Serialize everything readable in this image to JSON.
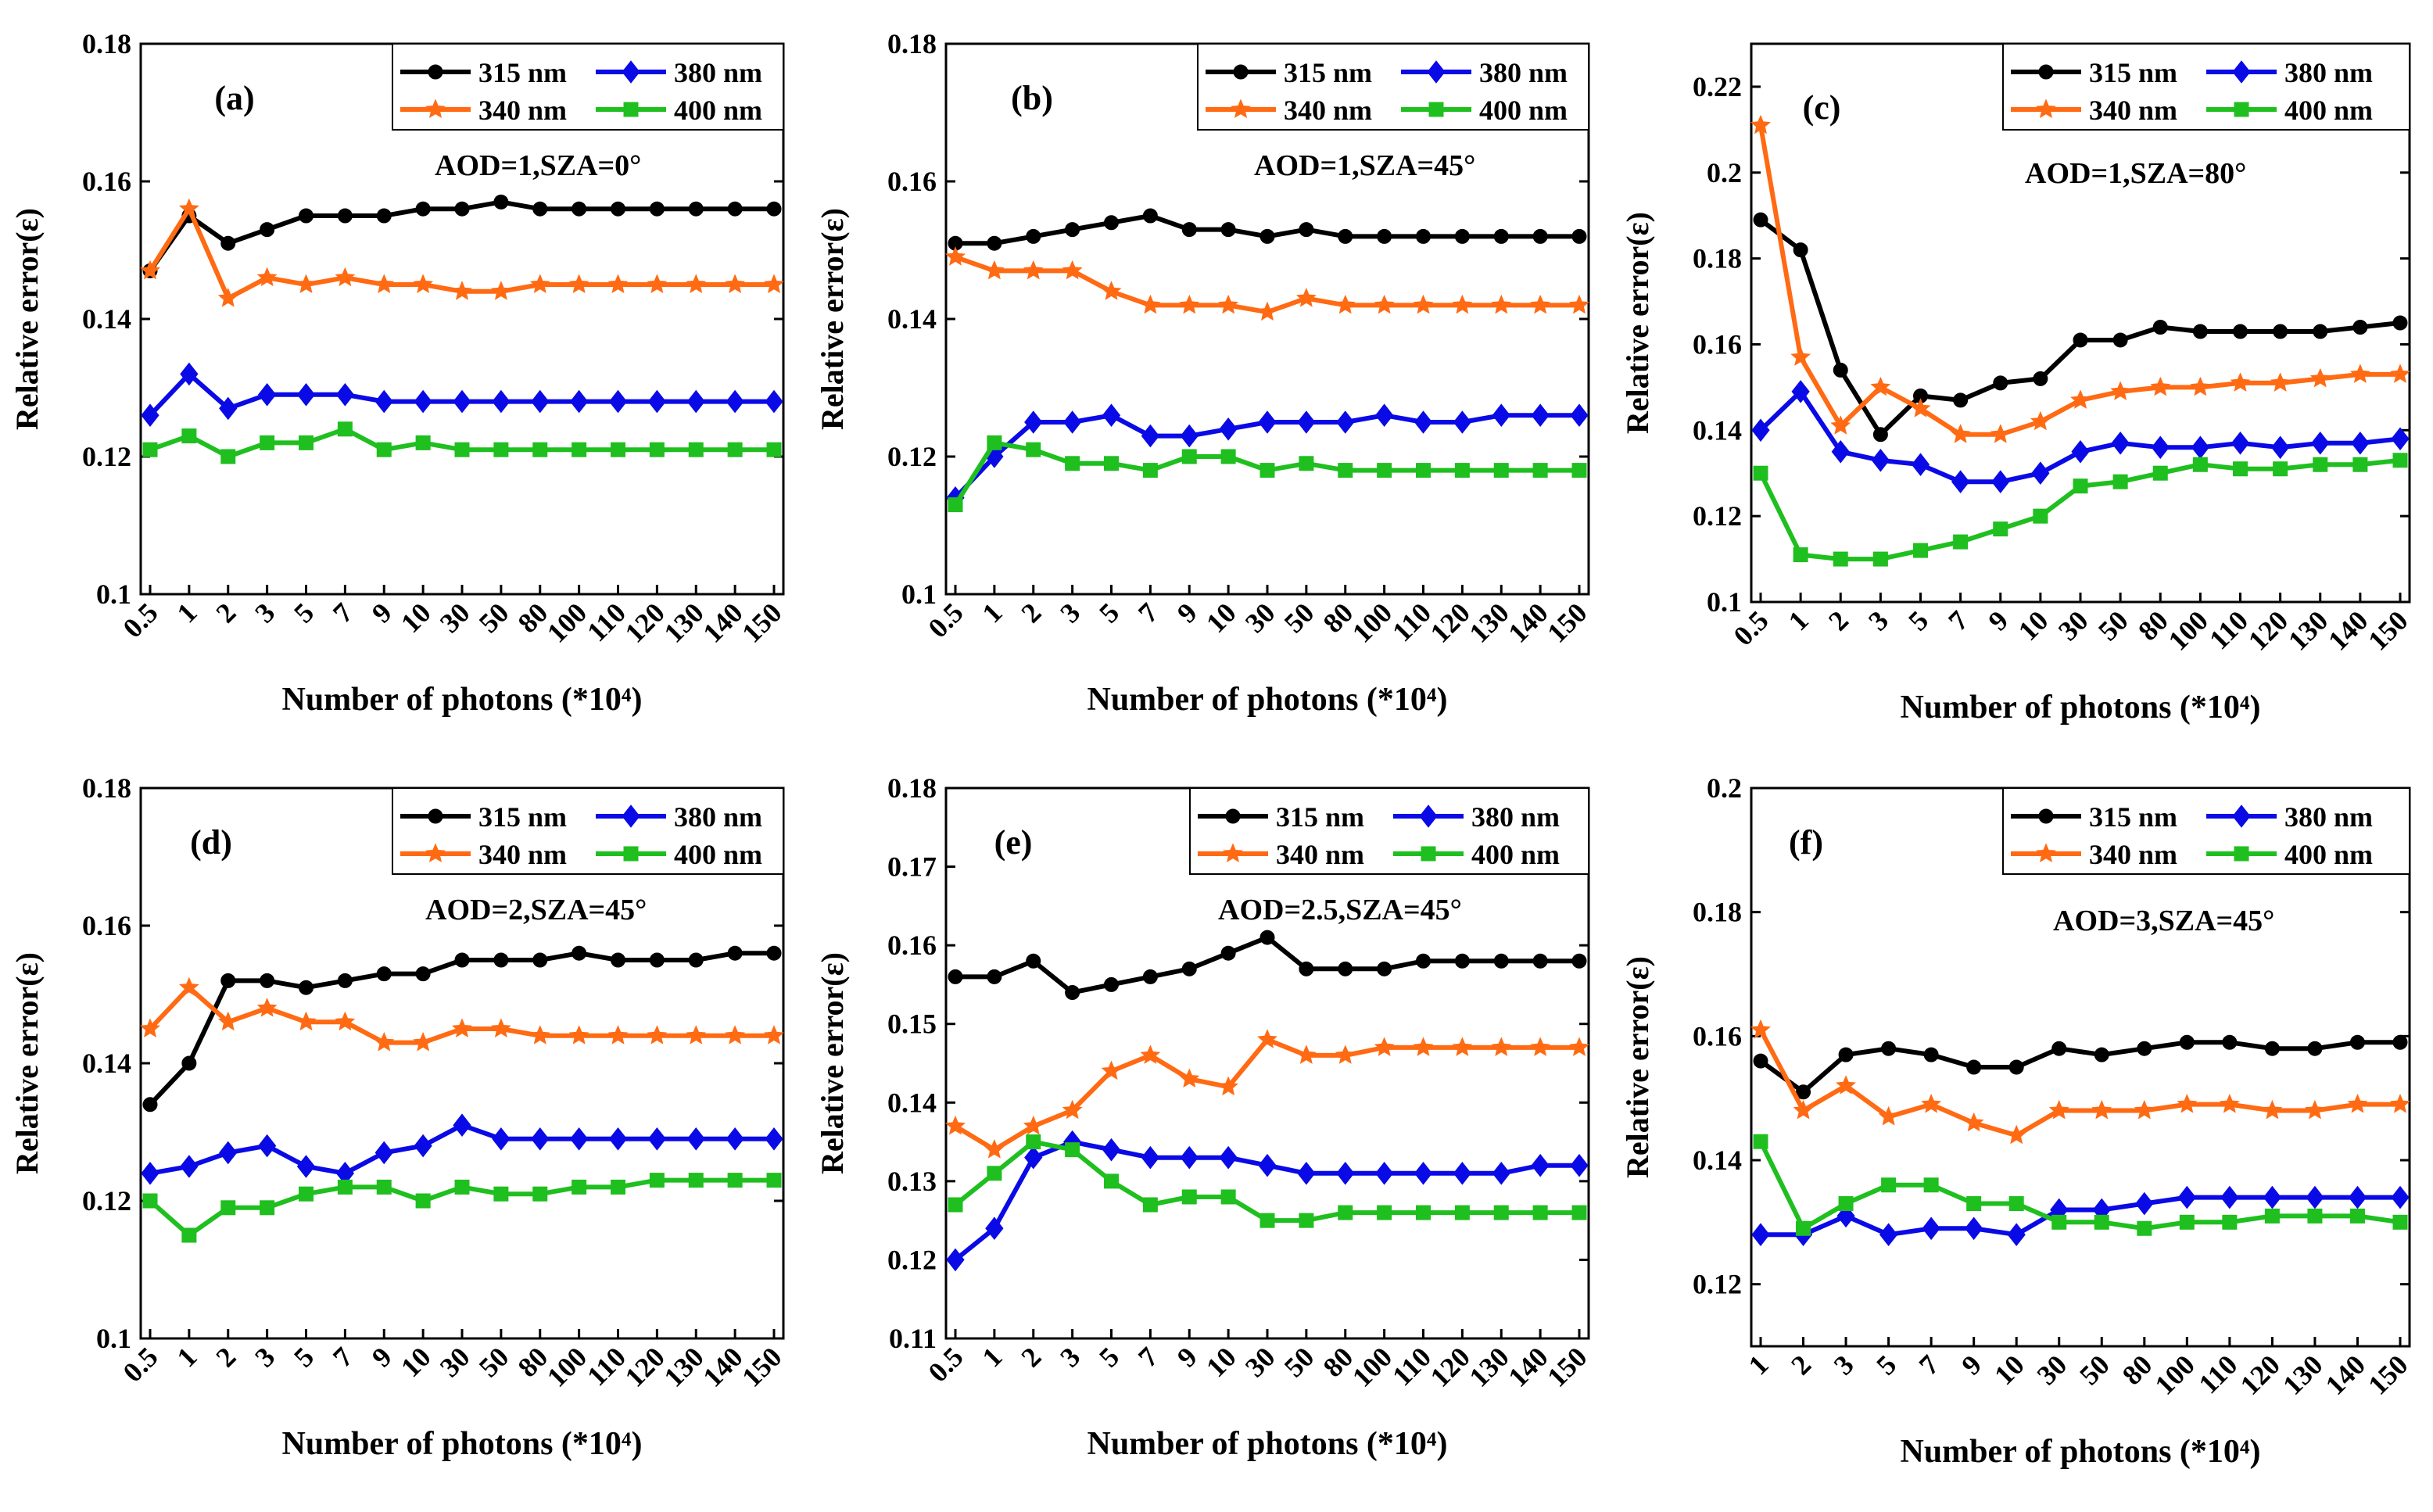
{
  "chart_data": [
    {
      "type": "line",
      "panel_label": "(a)",
      "annotation": "AOD=1,SZA=0°",
      "categories": [
        "0.5",
        "1",
        "2",
        "3",
        "5",
        "7",
        "9",
        "10",
        "30",
        "50",
        "80",
        "100",
        "110",
        "120",
        "130",
        "140",
        "150"
      ],
      "ylim": [
        0.1,
        0.18
      ],
      "yticks": [
        "0.1",
        "0.12",
        "0.14",
        "0.16",
        "0.18"
      ],
      "ylabel": "Relative error(ε)",
      "xlabel": "Number of photons (*10⁴)",
      "series": [
        {
          "name": "315 nm",
          "color": "#000000",
          "marker": "circle",
          "values": [
            0.147,
            0.155,
            0.151,
            0.153,
            0.155,
            0.155,
            0.155,
            0.156,
            0.156,
            0.157,
            0.156,
            0.156,
            0.156,
            0.156,
            0.156,
            0.156,
            0.156
          ]
        },
        {
          "name": "340 nm",
          "color": "#FF6A13",
          "marker": "star",
          "values": [
            0.147,
            0.156,
            0.143,
            0.146,
            0.145,
            0.146,
            0.145,
            0.145,
            0.144,
            0.144,
            0.145,
            0.145,
            0.145,
            0.145,
            0.145,
            0.145,
            0.145
          ]
        },
        {
          "name": "380 nm",
          "color": "#0A0AE6",
          "marker": "diamond",
          "values": [
            0.126,
            0.132,
            0.127,
            0.129,
            0.129,
            0.129,
            0.128,
            0.128,
            0.128,
            0.128,
            0.128,
            0.128,
            0.128,
            0.128,
            0.128,
            0.128,
            0.128
          ]
        },
        {
          "name": "400 nm",
          "color": "#1FBF1F",
          "marker": "square",
          "values": [
            0.121,
            0.123,
            0.12,
            0.122,
            0.122,
            0.124,
            0.121,
            0.122,
            0.121,
            0.121,
            0.121,
            0.121,
            0.121,
            0.121,
            0.121,
            0.121,
            0.121
          ]
        }
      ]
    },
    {
      "type": "line",
      "panel_label": "(b)",
      "annotation": "AOD=1,SZA=45°",
      "categories": [
        "0.5",
        "1",
        "2",
        "3",
        "5",
        "7",
        "9",
        "10",
        "30",
        "50",
        "80",
        "100",
        "110",
        "120",
        "130",
        "140",
        "150"
      ],
      "ylim": [
        0.1,
        0.18
      ],
      "yticks": [
        "0.1",
        "0.12",
        "0.14",
        "0.16",
        "0.18"
      ],
      "ylabel": "Relative error(ε)",
      "xlabel": "Number of photons (*10⁴)",
      "series": [
        {
          "name": "315 nm",
          "color": "#000000",
          "marker": "circle",
          "values": [
            0.151,
            0.151,
            0.152,
            0.153,
            0.154,
            0.155,
            0.153,
            0.153,
            0.152,
            0.153,
            0.152,
            0.152,
            0.152,
            0.152,
            0.152,
            0.152,
            0.152
          ]
        },
        {
          "name": "340 nm",
          "color": "#FF6A13",
          "marker": "star",
          "values": [
            0.149,
            0.147,
            0.147,
            0.147,
            0.144,
            0.142,
            0.142,
            0.142,
            0.141,
            0.143,
            0.142,
            0.142,
            0.142,
            0.142,
            0.142,
            0.142,
            0.142
          ]
        },
        {
          "name": "380 nm",
          "color": "#0A0AE6",
          "marker": "diamond",
          "values": [
            0.114,
            0.12,
            0.125,
            0.125,
            0.126,
            0.123,
            0.123,
            0.124,
            0.125,
            0.125,
            0.125,
            0.126,
            0.125,
            0.125,
            0.126,
            0.126,
            0.126
          ]
        },
        {
          "name": "400 nm",
          "color": "#1FBF1F",
          "marker": "square",
          "values": [
            0.113,
            0.122,
            0.121,
            0.119,
            0.119,
            0.118,
            0.12,
            0.12,
            0.118,
            0.119,
            0.118,
            0.118,
            0.118,
            0.118,
            0.118,
            0.118,
            0.118
          ]
        }
      ]
    },
    {
      "type": "line",
      "panel_label": "(c)",
      "annotation": "AOD=1,SZA=80°",
      "categories": [
        "0.5",
        "1",
        "2",
        "3",
        "5",
        "7",
        "9",
        "10",
        "30",
        "50",
        "80",
        "100",
        "110",
        "120",
        "130",
        "140",
        "150"
      ],
      "ylim": [
        0.1,
        0.23
      ],
      "yticks": [
        "0.1",
        "0.12",
        "0.14",
        "0.16",
        "0.18",
        "0.2",
        "0.22"
      ],
      "ylabel": "Relative error(ε)",
      "xlabel": "Number of photons (*10⁴)",
      "series": [
        {
          "name": "315 nm",
          "color": "#000000",
          "marker": "circle",
          "values": [
            0.189,
            0.182,
            0.154,
            0.139,
            0.148,
            0.147,
            0.151,
            0.152,
            0.161,
            0.161,
            0.164,
            0.163,
            0.163,
            0.163,
            0.163,
            0.164,
            0.165
          ]
        },
        {
          "name": "340 nm",
          "color": "#FF6A13",
          "marker": "star",
          "values": [
            0.211,
            0.157,
            0.141,
            0.15,
            0.145,
            0.139,
            0.139,
            0.142,
            0.147,
            0.149,
            0.15,
            0.15,
            0.151,
            0.151,
            0.152,
            0.153,
            0.153
          ]
        },
        {
          "name": "380 nm",
          "color": "#0A0AE6",
          "marker": "diamond",
          "values": [
            0.14,
            0.149,
            0.135,
            0.133,
            0.132,
            0.128,
            0.128,
            0.13,
            0.135,
            0.137,
            0.136,
            0.136,
            0.137,
            0.136,
            0.137,
            0.137,
            0.138
          ]
        },
        {
          "name": "400 nm",
          "color": "#1FBF1F",
          "marker": "square",
          "values": [
            0.13,
            0.111,
            0.11,
            0.11,
            0.112,
            0.114,
            0.117,
            0.12,
            0.127,
            0.128,
            0.13,
            0.132,
            0.131,
            0.131,
            0.132,
            0.132,
            0.133
          ]
        }
      ]
    },
    {
      "type": "line",
      "panel_label": "(d)",
      "annotation": "AOD=2,SZA=45°",
      "categories": [
        "0.5",
        "1",
        "2",
        "3",
        "5",
        "7",
        "9",
        "10",
        "30",
        "50",
        "80",
        "100",
        "110",
        "120",
        "130",
        "140",
        "150"
      ],
      "ylim": [
        0.1,
        0.18
      ],
      "yticks": [
        "0.1",
        "0.12",
        "0.14",
        "0.16",
        "0.18"
      ],
      "ylabel": "Relative error(ε)",
      "xlabel": "Number of photons (*10⁴)",
      "series": [
        {
          "name": "315 nm",
          "color": "#000000",
          "marker": "circle",
          "values": [
            0.134,
            0.14,
            0.152,
            0.152,
            0.151,
            0.152,
            0.153,
            0.153,
            0.155,
            0.155,
            0.155,
            0.156,
            0.155,
            0.155,
            0.155,
            0.156,
            0.156
          ]
        },
        {
          "name": "340 nm",
          "color": "#FF6A13",
          "marker": "star",
          "values": [
            0.145,
            0.151,
            0.146,
            0.148,
            0.146,
            0.146,
            0.143,
            0.143,
            0.145,
            0.145,
            0.144,
            0.144,
            0.144,
            0.144,
            0.144,
            0.144,
            0.144
          ]
        },
        {
          "name": "380 nm",
          "color": "#0A0AE6",
          "marker": "diamond",
          "values": [
            0.124,
            0.125,
            0.127,
            0.128,
            0.125,
            0.124,
            0.127,
            0.128,
            0.131,
            0.129,
            0.129,
            0.129,
            0.129,
            0.129,
            0.129,
            0.129,
            0.129
          ]
        },
        {
          "name": "400 nm",
          "color": "#1FBF1F",
          "marker": "square",
          "values": [
            0.12,
            0.115,
            0.119,
            0.119,
            0.121,
            0.122,
            0.122,
            0.12,
            0.122,
            0.121,
            0.121,
            0.122,
            0.122,
            0.123,
            0.123,
            0.123,
            0.123
          ]
        }
      ]
    },
    {
      "type": "line",
      "panel_label": "(e)",
      "annotation": "AOD=2.5,SZA=45°",
      "categories": [
        "0.5",
        "1",
        "2",
        "3",
        "5",
        "7",
        "9",
        "10",
        "30",
        "50",
        "80",
        "100",
        "110",
        "120",
        "130",
        "140",
        "150"
      ],
      "ylim": [
        0.11,
        0.18
      ],
      "yticks": [
        "0.11",
        "0.12",
        "0.13",
        "0.14",
        "0.15",
        "0.16",
        "0.17",
        "0.18"
      ],
      "ylabel": "Relative error(ε)",
      "xlabel": "Number of photons (*10⁴)",
      "series": [
        {
          "name": "315 nm",
          "color": "#000000",
          "marker": "circle",
          "values": [
            0.156,
            0.156,
            0.158,
            0.154,
            0.155,
            0.156,
            0.157,
            0.159,
            0.161,
            0.157,
            0.157,
            0.157,
            0.158,
            0.158,
            0.158,
            0.158,
            0.158
          ]
        },
        {
          "name": "340 nm",
          "color": "#FF6A13",
          "marker": "star",
          "values": [
            0.137,
            0.134,
            0.137,
            0.139,
            0.144,
            0.146,
            0.143,
            0.142,
            0.148,
            0.146,
            0.146,
            0.147,
            0.147,
            0.147,
            0.147,
            0.147,
            0.147
          ]
        },
        {
          "name": "380 nm",
          "color": "#0A0AE6",
          "marker": "diamond",
          "values": [
            0.12,
            0.124,
            0.133,
            0.135,
            0.134,
            0.133,
            0.133,
            0.133,
            0.132,
            0.131,
            0.131,
            0.131,
            0.131,
            0.131,
            0.131,
            0.132,
            0.132
          ]
        },
        {
          "name": "400 nm",
          "color": "#1FBF1F",
          "marker": "square",
          "values": [
            0.127,
            0.131,
            0.135,
            0.134,
            0.13,
            0.127,
            0.128,
            0.128,
            0.125,
            0.125,
            0.126,
            0.126,
            0.126,
            0.126,
            0.126,
            0.126,
            0.126
          ]
        }
      ]
    },
    {
      "type": "line",
      "panel_label": "(f)",
      "annotation": "AOD=3,SZA=45°",
      "categories": [
        "1",
        "2",
        "3",
        "5",
        "7",
        "9",
        "10",
        "30",
        "50",
        "80",
        "100",
        "110",
        "120",
        "130",
        "140",
        "150"
      ],
      "ylim": [
        0.11,
        0.2
      ],
      "yticks": [
        "0.12",
        "0.14",
        "0.16",
        "0.18",
        "0.2"
      ],
      "ylabel": "Relative error(ε)",
      "xlabel": "Number of photons (*10⁴)",
      "series": [
        {
          "name": "315 nm",
          "color": "#000000",
          "marker": "circle",
          "values": [
            0.156,
            0.151,
            0.157,
            0.158,
            0.157,
            0.155,
            0.155,
            0.158,
            0.157,
            0.158,
            0.159,
            0.159,
            0.158,
            0.158,
            0.159,
            0.159
          ]
        },
        {
          "name": "340 nm",
          "color": "#FF6A13",
          "marker": "star",
          "values": [
            0.161,
            0.148,
            0.152,
            0.147,
            0.149,
            0.146,
            0.144,
            0.148,
            0.148,
            0.148,
            0.149,
            0.149,
            0.148,
            0.148,
            0.149,
            0.149
          ]
        },
        {
          "name": "380 nm",
          "color": "#0A0AE6",
          "marker": "diamond",
          "values": [
            0.128,
            0.128,
            0.131,
            0.128,
            0.129,
            0.129,
            0.128,
            0.132,
            0.132,
            0.133,
            0.134,
            0.134,
            0.134,
            0.134,
            0.134,
            0.134
          ]
        },
        {
          "name": "400 nm",
          "color": "#1FBF1F",
          "marker": "square",
          "values": [
            0.143,
            0.129,
            0.133,
            0.136,
            0.136,
            0.133,
            0.133,
            0.13,
            0.13,
            0.129,
            0.13,
            0.13,
            0.131,
            0.131,
            0.131,
            0.13
          ]
        }
      ]
    }
  ]
}
